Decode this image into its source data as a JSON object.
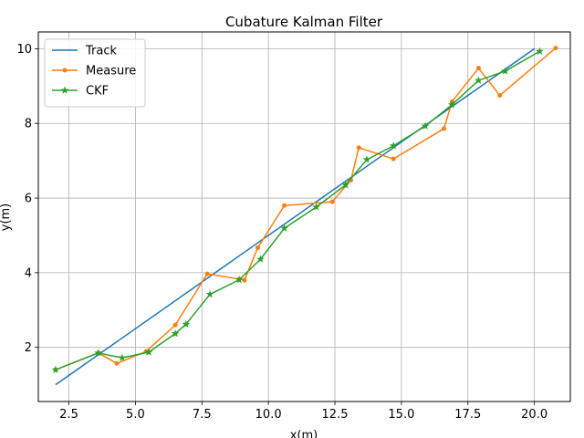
{
  "chart_data": {
    "type": "line",
    "title": "Cubature Kalman Filter",
    "xlabel": "x(m)",
    "ylabel": "y(m)",
    "xlim": [
      1.35,
      21.35
    ],
    "ylim": [
      0.55,
      10.45
    ],
    "xticks": [
      2.5,
      5.0,
      7.5,
      10.0,
      12.5,
      15.0,
      17.5,
      20.0
    ],
    "xtick_labels": [
      "2.5",
      "5.0",
      "7.5",
      "10.0",
      "12.5",
      "15.0",
      "17.5",
      "20.0"
    ],
    "yticks": [
      2,
      4,
      6,
      8,
      10
    ],
    "ytick_labels": [
      "2",
      "4",
      "6",
      "8",
      "10"
    ],
    "grid": true,
    "legend_position": "top-left",
    "series": [
      {
        "name": "Track",
        "color": "#1f77b4",
        "marker": "none",
        "x": [
          2.0,
          20.0
        ],
        "y": [
          1.0,
          10.0
        ]
      },
      {
        "name": "Measure",
        "color": "#ff7f0e",
        "marker": "dot",
        "x": [
          2.0,
          3.6,
          4.3,
          5.4,
          6.5,
          7.7,
          8.9,
          9.1,
          9.6,
          10.6,
          12.4,
          13.1,
          13.4,
          14.7,
          16.6,
          16.9,
          17.9,
          18.7,
          20.8
        ],
        "y": [
          1.4,
          1.85,
          1.57,
          1.89,
          2.6,
          3.97,
          3.83,
          3.8,
          4.67,
          5.8,
          5.9,
          6.48,
          7.35,
          7.05,
          7.86,
          8.58,
          9.48,
          8.75,
          10.02
        ]
      },
      {
        "name": "CKF",
        "color": "#2ca02c",
        "marker": "star",
        "x": [
          2.0,
          3.6,
          4.5,
          5.5,
          6.5,
          6.9,
          7.8,
          8.9,
          9.7,
          10.6,
          11.8,
          12.9,
          13.7,
          14.7,
          15.9,
          16.9,
          17.9,
          18.9,
          20.2
        ],
        "y": [
          1.4,
          1.85,
          1.72,
          1.87,
          2.37,
          2.62,
          3.42,
          3.81,
          4.36,
          5.19,
          5.76,
          6.35,
          7.03,
          7.4,
          7.93,
          8.5,
          9.15,
          9.4,
          9.93
        ]
      }
    ]
  }
}
